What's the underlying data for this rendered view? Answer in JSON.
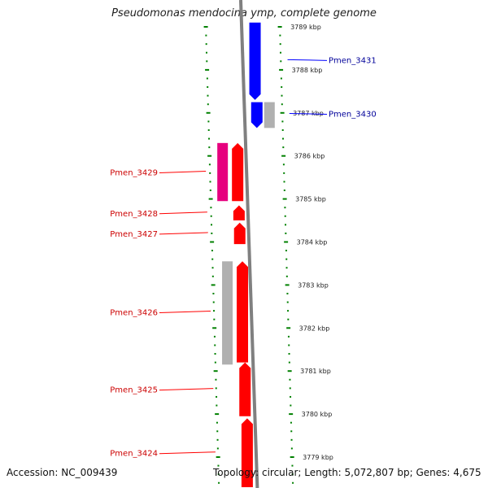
{
  "title": "Pseudomonas mendocina ymp, complete genome",
  "footer": {
    "accession": "Accession: NC_009439",
    "summary": "Topology: circular; Length: 5,072,807 bp; Genes: 4,675"
  },
  "colors": {
    "forward": "#ff0000",
    "reverse": "#0000ff",
    "forward_label": "#cc0000",
    "reverse_label": "#000099",
    "rna": "#e6007e",
    "pseudo": "#b0b0b0",
    "ruler": "#008000",
    "backbone": "#808080"
  },
  "kbp_ticks": [
    {
      "kbp": 3789,
      "label": "3789 kbp"
    },
    {
      "kbp": 3788,
      "label": "3788 kbp"
    },
    {
      "kbp": 3787,
      "label": "3787 kbp"
    },
    {
      "kbp": 3786,
      "label": "3786 kbp"
    },
    {
      "kbp": 3785,
      "label": "3785 kbp"
    },
    {
      "kbp": 3784,
      "label": "3784 kbp"
    },
    {
      "kbp": 3783,
      "label": "3783 kbp"
    },
    {
      "kbp": 3782,
      "label": "3782 kbp"
    },
    {
      "kbp": 3781,
      "label": "3781 kbp"
    },
    {
      "kbp": 3780,
      "label": "3780 kbp"
    },
    {
      "kbp": 3779,
      "label": "3779 kbp"
    }
  ],
  "genes": [
    {
      "name": "Pmen_3431",
      "strand": "reverse",
      "start_kbp": 3787.3,
      "end_kbp": 3789.1
    },
    {
      "name": "Pmen_3430",
      "strand": "reverse",
      "start_kbp": 3786.65,
      "end_kbp": 3787.25
    },
    {
      "name": "Pmen_3429",
      "strand": "forward",
      "start_kbp": 3784.95,
      "end_kbp": 3786.3
    },
    {
      "name": "Pmen_3428",
      "strand": "forward",
      "start_kbp": 3784.5,
      "end_kbp": 3784.85
    },
    {
      "name": "Pmen_3427",
      "strand": "forward",
      "start_kbp": 3783.95,
      "end_kbp": 3784.45
    },
    {
      "name": "Pmen_3426",
      "strand": "forward",
      "start_kbp": 3781.2,
      "end_kbp": 3783.55
    },
    {
      "name": "Pmen_3425",
      "strand": "forward",
      "start_kbp": 3779.95,
      "end_kbp": 3781.2
    },
    {
      "name": "Pmen_3424",
      "strand": "forward",
      "start_kbp": 3778.3,
      "end_kbp": 3779.9
    }
  ],
  "secondary_features": [
    {
      "kind": "pseudo",
      "strand": "reverse",
      "start_kbp": 3786.65,
      "end_kbp": 3787.25
    },
    {
      "kind": "rna",
      "strand": "forward",
      "start_kbp": 3784.95,
      "end_kbp": 3786.3
    },
    {
      "kind": "pseudo",
      "strand": "forward",
      "start_kbp": 3781.15,
      "end_kbp": 3783.55
    }
  ]
}
